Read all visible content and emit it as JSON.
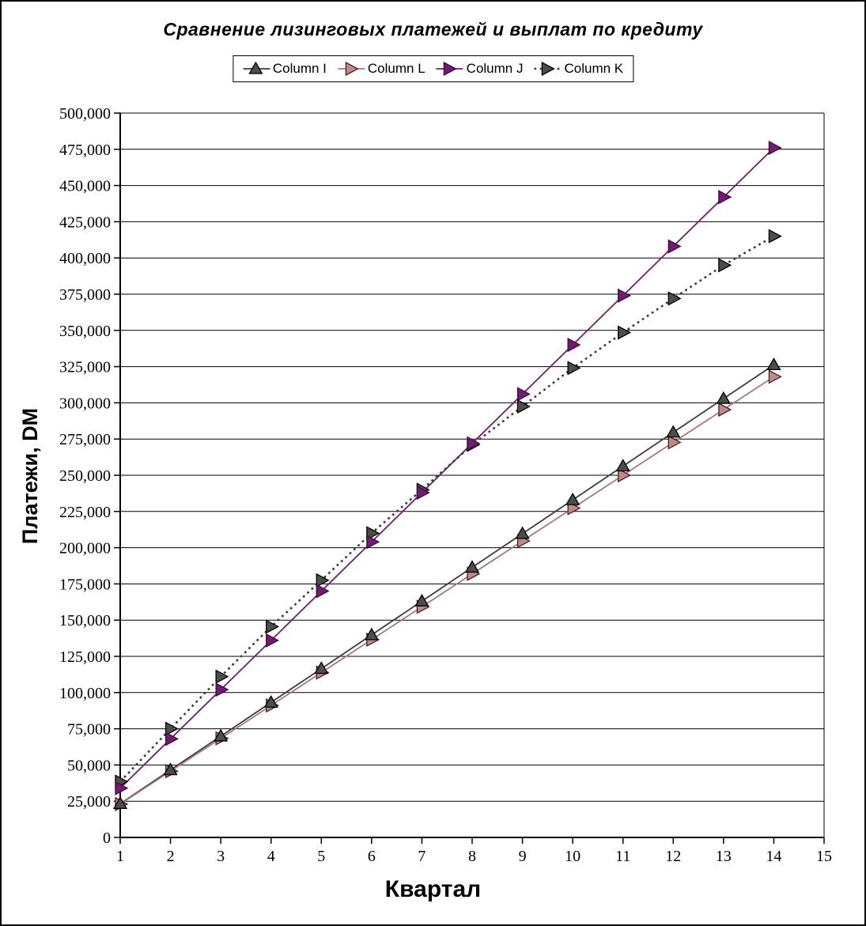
{
  "chart_data": {
    "type": "line",
    "title": "Сравнение лизинговых платежей и выплат по кредиту",
    "xlabel": "Квартал",
    "ylabel": "Платежи, DM",
    "legend_position": "top-center",
    "grid": "horizontal",
    "xlim": [
      1,
      15
    ],
    "ylim": [
      0,
      500000
    ],
    "xticks": [
      1,
      2,
      3,
      4,
      5,
      6,
      7,
      8,
      9,
      10,
      11,
      12,
      13,
      14,
      15
    ],
    "yticks": [
      0,
      25000,
      50000,
      75000,
      100000,
      125000,
      150000,
      175000,
      200000,
      225000,
      250000,
      275000,
      300000,
      325000,
      350000,
      375000,
      400000,
      425000,
      450000,
      475000,
      500000
    ],
    "x": [
      1,
      2,
      3,
      4,
      5,
      6,
      7,
      8,
      9,
      10,
      11,
      12,
      13,
      14
    ],
    "series": [
      {
        "name": "Column I",
        "line_style": "solid",
        "line_color": "#3c3c3c",
        "marker": "triangle-up",
        "marker_fill": "#4d4d4d",
        "marker_stroke": "#000000",
        "values": [
          23300,
          46600,
          69900,
          93200,
          116500,
          139800,
          163100,
          186400,
          209700,
          233000,
          256300,
          279600,
          302900,
          326200
        ]
      },
      {
        "name": "Column L",
        "line_style": "solid",
        "line_color": "#a87878",
        "marker": "triangle-right",
        "marker_fill": "#c08989",
        "marker_stroke": "#4a2020",
        "values": [
          23000,
          45700,
          68400,
          91100,
          113800,
          136500,
          159200,
          181900,
          204600,
          227300,
          250000,
          272700,
          295300,
          318000
        ]
      },
      {
        "name": "Column J",
        "line_style": "solid",
        "line_color": "#701c70",
        "marker": "triangle-right",
        "marker_fill": "#701c70",
        "marker_stroke": "#3d0a3d",
        "values": [
          34000,
          68000,
          102000,
          136000,
          170000,
          204000,
          238000,
          272000,
          306000,
          340000,
          374000,
          408000,
          442000,
          476000
        ]
      },
      {
        "name": "Column K",
        "line_style": "dotted",
        "line_color": "#3c3c3c",
        "marker": "triangle-right",
        "marker_fill": "#4d4d4d",
        "marker_stroke": "#000000",
        "values": [
          38500,
          75000,
          111000,
          145500,
          177500,
          210000,
          240000,
          271000,
          297500,
          324000,
          348500,
          372000,
          395000,
          415000
        ]
      }
    ]
  }
}
